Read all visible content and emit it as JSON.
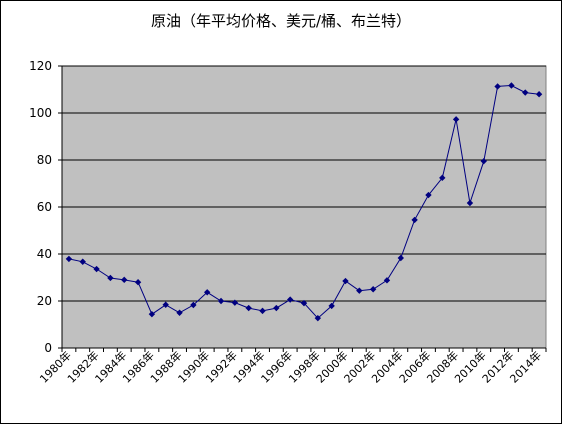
{
  "chart_data": {
    "type": "line",
    "title": "原油（年平均价格、美元/桶、布兰特）",
    "xlabel": "",
    "ylabel": "",
    "ylim": [
      0,
      120
    ],
    "y_ticks": [
      0,
      20,
      40,
      60,
      80,
      100,
      120
    ],
    "grid": true,
    "legend": "none",
    "colors": {
      "plot_bg": "#c0c0c0",
      "line": "#000080",
      "grid": "#000000"
    },
    "x_tick_labels": [
      "1980年",
      "1982年",
      "1984年",
      "1986年",
      "1988年",
      "1990年",
      "1992年",
      "1994年",
      "1996年",
      "1998年",
      "2000年",
      "2002年",
      "2004年",
      "2006年",
      "2008年",
      "2010年",
      "2012年",
      "2014年"
    ],
    "series": [
      {
        "x": [
          1980,
          1981,
          1982,
          1983,
          1984,
          1985,
          1986,
          1987,
          1988,
          1989,
          1990,
          1991,
          1992,
          1993,
          1994,
          1995,
          1996,
          1997,
          1998,
          1999,
          2000,
          2001,
          2002,
          2003,
          2004,
          2005,
          2006,
          2007,
          2008,
          2009,
          2010,
          2011,
          2012,
          2013,
          2014
        ],
        "values": [
          37.9,
          36.7,
          33.6,
          29.8,
          29.0,
          28.0,
          14.4,
          18.4,
          15.0,
          18.3,
          23.7,
          20.0,
          19.3,
          17.0,
          15.8,
          17.0,
          20.6,
          19.1,
          12.7,
          17.9,
          28.5,
          24.4,
          25.0,
          28.8,
          38.3,
          54.5,
          65.1,
          72.4,
          97.3,
          61.7,
          79.5,
          111.3,
          111.7,
          108.7,
          108.0
        ]
      }
    ]
  }
}
